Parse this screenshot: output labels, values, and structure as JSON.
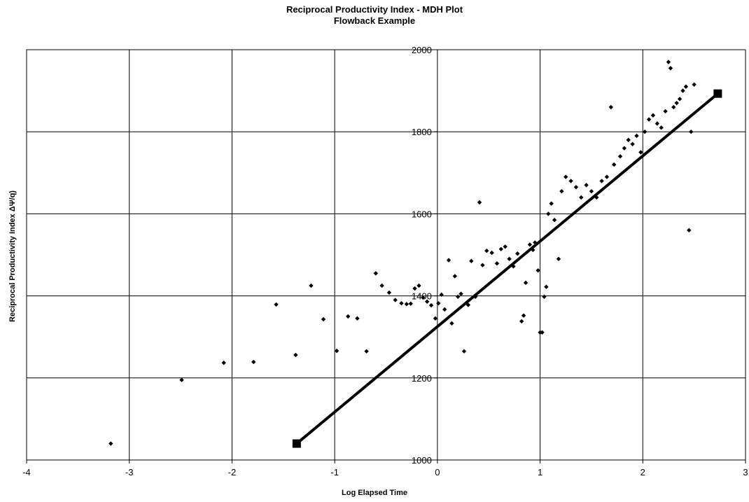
{
  "chart_data": {
    "type": "scatter",
    "title": "Reciprocal Productivity Index - MDH Plot",
    "subtitle": "Flowback Example",
    "xlabel": "Log Elapsed Time",
    "ylabel": "Reciprocal Productivity Index ΔΨ/q)",
    "xlim": [
      -4,
      3
    ],
    "ylim": [
      1000,
      2000
    ],
    "x_ticks": [
      -4,
      -3,
      -2,
      -1,
      0,
      1,
      2,
      3
    ],
    "y_ticks": [
      1000,
      1200,
      1400,
      1600,
      1800,
      2000
    ],
    "x_tick_labels": [
      "-4",
      "-3",
      "-2",
      "-1",
      "0",
      "1",
      "2",
      "3"
    ],
    "y_tick_labels": [
      "1000",
      "1200",
      "1400",
      "1600",
      "1800",
      "2000"
    ],
    "grid": true,
    "legend": "none",
    "colors": {
      "points": "#000000",
      "line": "#000000",
      "grid": "#000000",
      "background": "#ffffff"
    },
    "series": [
      {
        "type": "scatter",
        "marker": "diamond",
        "points": [
          [
            -3.18,
            1040
          ],
          [
            -2.49,
            1195
          ],
          [
            -2.08,
            1237
          ],
          [
            -1.79,
            1239
          ],
          [
            -1.57,
            1379
          ],
          [
            -1.38,
            1256
          ],
          [
            -1.23,
            1425
          ],
          [
            -1.11,
            1343
          ],
          [
            -0.98,
            1266
          ],
          [
            -0.87,
            1350
          ],
          [
            -0.78,
            1345
          ],
          [
            -0.69,
            1265
          ],
          [
            -0.6,
            1455
          ],
          [
            -0.54,
            1425
          ],
          [
            -0.47,
            1408
          ],
          [
            -0.41,
            1390
          ],
          [
            -0.35,
            1382
          ],
          [
            -0.3,
            1380
          ],
          [
            -0.26,
            1381
          ],
          [
            -0.22,
            1418
          ],
          [
            -0.18,
            1425
          ],
          [
            -0.14,
            1396
          ],
          [
            -0.1,
            1386
          ],
          [
            -0.06,
            1377
          ],
          [
            -0.02,
            1345
          ],
          [
            0.01,
            1382
          ],
          [
            0.04,
            1403
          ],
          [
            0.07,
            1367
          ],
          [
            0.11,
            1487
          ],
          [
            0.14,
            1333
          ],
          [
            0.17,
            1448
          ],
          [
            0.2,
            1398
          ],
          [
            0.23,
            1405
          ],
          [
            0.26,
            1265
          ],
          [
            0.3,
            1378
          ],
          [
            0.33,
            1485
          ],
          [
            0.37,
            1398
          ],
          [
            0.41,
            1628
          ],
          [
            0.44,
            1475
          ],
          [
            0.48,
            1510
          ],
          [
            0.53,
            1505
          ],
          [
            0.58,
            1479
          ],
          [
            0.62,
            1514
          ],
          [
            0.66,
            1520
          ],
          [
            0.7,
            1490
          ],
          [
            0.74,
            1472
          ],
          [
            0.78,
            1503
          ],
          [
            0.82,
            1338
          ],
          [
            0.84,
            1352
          ],
          [
            0.86,
            1432
          ],
          [
            0.9,
            1525
          ],
          [
            0.93,
            1512
          ],
          [
            0.95,
            1530
          ],
          [
            0.98,
            1462
          ],
          [
            1.0,
            1311
          ],
          [
            1.02,
            1311
          ],
          [
            1.04,
            1398
          ],
          [
            1.06,
            1422
          ],
          [
            1.08,
            1600
          ],
          [
            1.11,
            1625
          ],
          [
            1.14,
            1585
          ],
          [
            1.18,
            1490
          ],
          [
            1.21,
            1655
          ],
          [
            1.25,
            1690
          ],
          [
            1.3,
            1680
          ],
          [
            1.35,
            1665
          ],
          [
            1.4,
            1640
          ],
          [
            1.45,
            1670
          ],
          [
            1.5,
            1655
          ],
          [
            1.55,
            1640
          ],
          [
            1.6,
            1680
          ],
          [
            1.65,
            1690
          ],
          [
            1.69,
            1860
          ],
          [
            1.72,
            1720
          ],
          [
            1.78,
            1740
          ],
          [
            1.82,
            1760
          ],
          [
            1.86,
            1780
          ],
          [
            1.9,
            1770
          ],
          [
            1.94,
            1790
          ],
          [
            1.98,
            1750
          ],
          [
            2.02,
            1800
          ],
          [
            2.06,
            1830
          ],
          [
            2.1,
            1840
          ],
          [
            2.14,
            1820
          ],
          [
            2.18,
            1810
          ],
          [
            2.22,
            1850
          ],
          [
            2.25,
            1970
          ],
          [
            2.27,
            1955
          ],
          [
            2.3,
            1860
          ],
          [
            2.33,
            1870
          ],
          [
            2.36,
            1880
          ],
          [
            2.39,
            1900
          ],
          [
            2.42,
            1910
          ],
          [
            2.45,
            1560
          ],
          [
            2.47,
            1800
          ],
          [
            2.5,
            1915
          ]
        ]
      },
      {
        "type": "line",
        "marker": "square",
        "points": [
          [
            -1.37,
            1040
          ],
          [
            2.73,
            1893
          ]
        ]
      }
    ]
  }
}
